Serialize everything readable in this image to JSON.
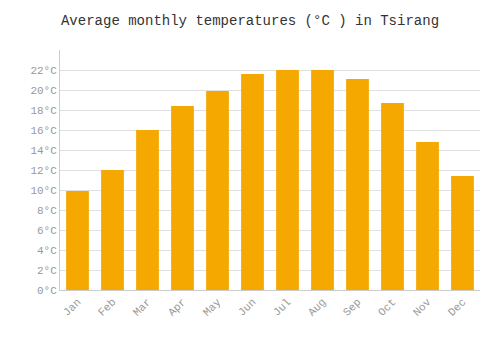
{
  "chart_data": {
    "type": "bar",
    "title": "Average monthly temperatures (°C ) in Tsirang",
    "categories": [
      "Jan",
      "Feb",
      "Mar",
      "Apr",
      "May",
      "Jun",
      "Jul",
      "Aug",
      "Sep",
      "Oct",
      "Nov",
      "Dec"
    ],
    "values": [
      9.9,
      12.0,
      16.0,
      18.4,
      19.9,
      21.6,
      22.0,
      22.0,
      21.1,
      18.7,
      14.8,
      11.4
    ],
    "color": "#F5A800",
    "ylim": [
      0,
      24
    ],
    "yticks": [
      {
        "value": 0,
        "label": "0°C"
      },
      {
        "value": 2,
        "label": "2°C"
      },
      {
        "value": 4,
        "label": "4°C"
      },
      {
        "value": 6,
        "label": "6°C"
      },
      {
        "value": 8,
        "label": "8°C"
      },
      {
        "value": 10,
        "label": "10°C"
      },
      {
        "value": 12,
        "label": "12°C"
      },
      {
        "value": 14,
        "label": "14°C"
      },
      {
        "value": 16,
        "label": "16°C"
      },
      {
        "value": 18,
        "label": "18°C"
      },
      {
        "value": 20,
        "label": "20°C"
      },
      {
        "value": 22,
        "label": "22°C"
      }
    ],
    "grid": true
  }
}
